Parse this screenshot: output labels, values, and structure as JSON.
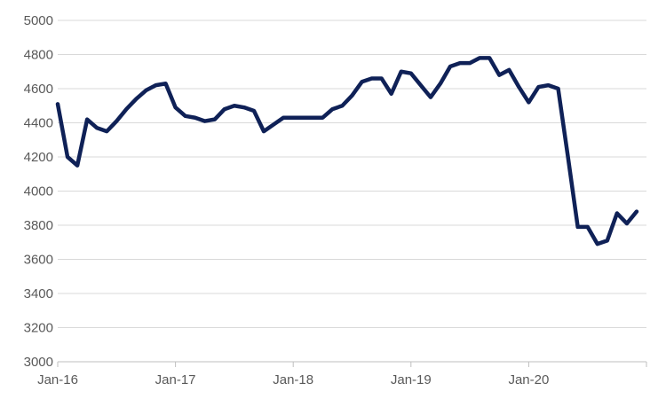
{
  "chart_data": {
    "type": "line",
    "title": "",
    "xlabel": "",
    "ylabel": "",
    "ylim": [
      3000,
      5000
    ],
    "y_ticks": [
      3000,
      3200,
      3400,
      3600,
      3800,
      4000,
      4200,
      4400,
      4600,
      4800,
      5000
    ],
    "x_start": "2016-01",
    "x_tick_labels": [
      "Jan-16",
      "Jan-17",
      "Jan-18",
      "Jan-19",
      "Jan-20"
    ],
    "x_tick_dates": [
      "2016-01",
      "2017-01",
      "2018-01",
      "2019-01",
      "2020-01"
    ],
    "grid": "horizontal",
    "legend": "none",
    "series": [
      {
        "color": "#0f2157",
        "x": [
          "2016-01",
          "2016-02",
          "2016-03",
          "2016-04",
          "2016-05",
          "2016-06",
          "2016-07",
          "2016-08",
          "2016-09",
          "2016-10",
          "2016-11",
          "2016-12",
          "2017-01",
          "2017-02",
          "2017-03",
          "2017-04",
          "2017-05",
          "2017-06",
          "2017-07",
          "2017-08",
          "2017-09",
          "2017-10",
          "2017-11",
          "2017-12",
          "2018-01",
          "2018-02",
          "2018-03",
          "2018-04",
          "2018-05",
          "2018-06",
          "2018-07",
          "2018-08",
          "2018-09",
          "2018-10",
          "2018-11",
          "2018-12",
          "2019-01",
          "2019-02",
          "2019-03",
          "2019-04",
          "2019-05",
          "2019-06",
          "2019-07",
          "2019-08",
          "2019-09",
          "2019-10",
          "2019-11",
          "2019-12",
          "2020-01",
          "2020-02",
          "2020-03",
          "2020-04",
          "2020-05",
          "2020-06",
          "2020-07",
          "2020-08",
          "2020-09",
          "2020-10",
          "2020-11",
          "2020-12"
        ],
        "values": [
          4510,
          4200,
          4150,
          4420,
          4370,
          4350,
          4410,
          4480,
          4540,
          4590,
          4620,
          4630,
          4490,
          4440,
          4430,
          4410,
          4420,
          4480,
          4500,
          4490,
          4470,
          4350,
          4390,
          4430,
          4430,
          4430,
          4430,
          4430,
          4480,
          4500,
          4560,
          4640,
          4660,
          4660,
          4570,
          4700,
          4690,
          4620,
          4550,
          4630,
          4730,
          4750,
          4750,
          4780,
          4780,
          4680,
          4710,
          4610,
          4520,
          4610,
          4620,
          4600,
          4200,
          3790,
          3790,
          3690,
          3710,
          3870,
          3810,
          3880
        ]
      }
    ]
  }
}
